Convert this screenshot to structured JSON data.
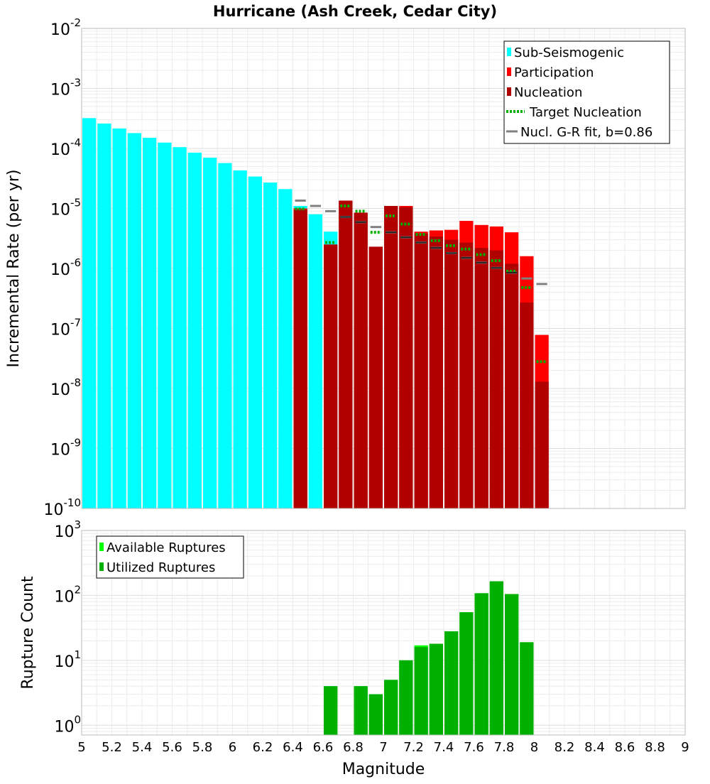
{
  "chart_data": [
    {
      "type": "bar",
      "title": "Hurricane (Ash Creek, Cedar City)",
      "ylabel": "Incremental Rate (per yr)",
      "xlabel": "",
      "xlim": [
        5,
        9
      ],
      "ylim_log10": [
        -10,
        -2
      ],
      "y_tick_labels": [
        {
          "base": "10",
          "exp": "-2"
        },
        {
          "base": "10",
          "exp": "-3"
        },
        {
          "base": "10",
          "exp": "-4"
        },
        {
          "base": "10",
          "exp": "-5"
        },
        {
          "base": "10",
          "exp": "-6"
        },
        {
          "base": "10",
          "exp": "-7"
        },
        {
          "base": "10",
          "exp": "-8"
        },
        {
          "base": "10",
          "exp": "-9"
        },
        {
          "base": "10",
          "exp": "-10"
        }
      ],
      "legend": {
        "position": "top-right",
        "entries": [
          {
            "label": "Sub-Seismogenic",
            "color": "#00ffff",
            "style": "bar"
          },
          {
            "label": "Participation",
            "color": "#ff0000",
            "style": "bar"
          },
          {
            "label": "Nucleation",
            "color": "#b00000",
            "style": "bar"
          },
          {
            "label": "Target Nucleation",
            "color": "#00b000",
            "style": "dotted"
          },
          {
            "label": "Nucl. G-R fit, b=0.86",
            "color": "#808080",
            "style": "line"
          }
        ]
      },
      "series": [
        {
          "name": "Sub-Seismogenic",
          "color": "#00ffff",
          "x": [
            5.05,
            5.15,
            5.25,
            5.35,
            5.45,
            5.55,
            5.65,
            5.75,
            5.85,
            5.95,
            6.05,
            6.15,
            6.25,
            6.35,
            6.45,
            6.55,
            6.65
          ],
          "values": [
            0.00032,
            0.00026,
            0.000215,
            0.00018,
            0.00015,
            0.000125,
            0.000105,
            8.5e-05,
            7e-05,
            5.7e-05,
            4.3e-05,
            3.4e-05,
            2.7e-05,
            2.1e-05,
            1.1e-05,
            8e-06,
            4.1e-06
          ]
        },
        {
          "name": "Participation",
          "color": "#ff0000",
          "x": [
            6.45,
            6.65,
            6.75,
            6.85,
            6.95,
            7.05,
            7.15,
            7.25,
            7.35,
            7.45,
            7.55,
            7.65,
            7.75,
            7.85,
            7.95,
            8.05
          ],
          "values": [
            1e-05,
            2.5e-06,
            1.35e-05,
            8.5e-06,
            2.3e-06,
            1.1e-05,
            1.1e-05,
            4.1e-06,
            4.3e-06,
            4.4e-06,
            6.2e-06,
            5.3e-06,
            5e-06,
            4e-06,
            1.6e-06,
            7.8e-08
          ]
        },
        {
          "name": "Nucleation",
          "color": "#b00000",
          "x": [
            6.45,
            6.65,
            6.75,
            6.85,
            6.95,
            7.05,
            7.15,
            7.25,
            7.35,
            7.45,
            7.55,
            7.65,
            7.75,
            7.85,
            7.95,
            8.05
          ],
          "values": [
            9.5e-06,
            2.5e-06,
            1.35e-05,
            8.5e-06,
            2.3e-06,
            1.1e-05,
            1.05e-05,
            3.8e-06,
            3.4e-06,
            3e-06,
            2.7e-06,
            2.2e-06,
            2e-06,
            1.2e-06,
            2.7e-07,
            1.3e-08
          ]
        },
        {
          "name": "Target Nucleation",
          "color": "#00b000",
          "x": [
            6.45,
            6.65,
            6.75,
            6.85,
            6.95,
            7.05,
            7.15,
            7.25,
            7.35,
            7.45,
            7.55,
            7.65,
            7.75,
            7.85,
            7.95,
            8.05
          ],
          "values": [
            9.8e-06,
            2.7e-06,
            1.1e-05,
            9e-06,
            4e-06,
            7.5e-06,
            5.5e-06,
            3.7e-06,
            2.9e-06,
            2.4e-06,
            2.1e-06,
            1.7e-06,
            1.35e-06,
            9e-07,
            4.8e-07,
            2.8e-08
          ]
        },
        {
          "name": "Nucl. G-R fit, b=0.86",
          "color": "#808080",
          "x": [
            6.45,
            6.55,
            6.65,
            6.75,
            6.85,
            6.95,
            7.05,
            7.15,
            7.25,
            7.35,
            7.45,
            7.55,
            7.65,
            7.75,
            7.85,
            7.95,
            8.05
          ],
          "values": [
            1.35e-05,
            1.1e-05,
            9e-06,
            7.2e-06,
            5.9e-06,
            4.9e-06,
            4e-06,
            3.3e-06,
            2.7e-06,
            2.2e-06,
            1.8e-06,
            1.5e-06,
            1.25e-06,
            1.02e-06,
            8.5e-07,
            6.8e-07,
            5.5e-07
          ]
        }
      ]
    },
    {
      "type": "bar",
      "title": "",
      "ylabel": "Rupture Count",
      "xlabel": "Magnitude",
      "xlim": [
        5,
        9
      ],
      "ylim_log10": [
        -0.15,
        3
      ],
      "x_ticks": [
        "5",
        "5.2",
        "5.4",
        "5.6",
        "5.8",
        "6",
        "6.2",
        "6.4",
        "6.6",
        "6.8",
        "7",
        "7.2",
        "7.4",
        "7.6",
        "7.8",
        "8",
        "8.2",
        "8.4",
        "8.6",
        "8.8",
        "9"
      ],
      "y_tick_labels": [
        {
          "base": "10",
          "exp": "3"
        },
        {
          "base": "10",
          "exp": "2"
        },
        {
          "base": "10",
          "exp": "1"
        },
        {
          "base": "10",
          "exp": "0"
        }
      ],
      "legend": {
        "position": "top-left",
        "entries": [
          {
            "label": "Available Ruptures",
            "color": "#00ff00",
            "style": "bar"
          },
          {
            "label": "Utilized Ruptures",
            "color": "#00b000",
            "style": "bar"
          }
        ]
      },
      "series": [
        {
          "name": "Available Ruptures",
          "color": "#00ff00",
          "x": [
            6.65,
            6.85,
            6.95,
            7.05,
            7.15,
            7.25,
            7.35,
            7.45,
            7.55,
            7.65,
            7.75,
            7.85,
            7.95
          ],
          "values": [
            4,
            4,
            3,
            5,
            10,
            17,
            18,
            28,
            55,
            108,
            165,
            105,
            19
          ]
        },
        {
          "name": "Utilized Ruptures",
          "color": "#00b000",
          "x": [
            6.65,
            6.85,
            6.95,
            7.05,
            7.15,
            7.25,
            7.35,
            7.45,
            7.55,
            7.65,
            7.75,
            7.85,
            7.95
          ],
          "values": [
            4,
            4,
            3,
            5,
            10,
            16,
            18,
            28,
            55,
            108,
            165,
            105,
            19
          ]
        }
      ]
    }
  ]
}
